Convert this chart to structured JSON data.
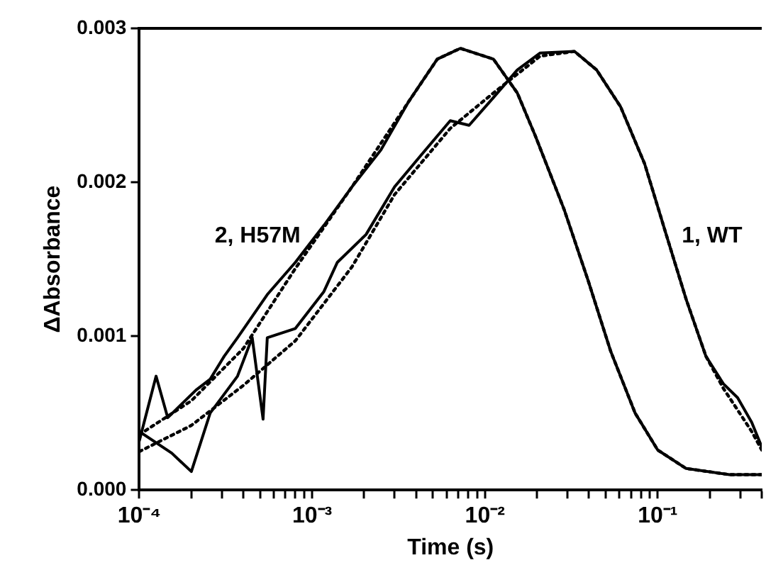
{
  "chart_data": {
    "type": "line",
    "xlabel": "Time (s)",
    "ylabel": "ΔAbsorbance",
    "log": "x",
    "grid": false,
    "legend": false,
    "xlim": [
      0.0001,
      0.4
    ],
    "xticks": [
      {
        "value": 0.0001,
        "label": "10⁻⁴"
      },
      {
        "value": 0.0002,
        "label": null
      },
      {
        "value": 0.0003,
        "label": null
      },
      {
        "value": 0.0004,
        "label": null
      },
      {
        "value": 0.0005,
        "label": null
      },
      {
        "value": 0.0006,
        "label": null
      },
      {
        "value": 0.0007,
        "label": null
      },
      {
        "value": 0.0008,
        "label": null
      },
      {
        "value": 0.0009,
        "label": null
      },
      {
        "value": 0.001,
        "label": "10⁻³"
      },
      {
        "value": 0.002,
        "label": null
      },
      {
        "value": 0.003,
        "label": null
      },
      {
        "value": 0.004,
        "label": null
      },
      {
        "value": 0.005,
        "label": null
      },
      {
        "value": 0.006,
        "label": null
      },
      {
        "value": 0.007,
        "label": null
      },
      {
        "value": 0.008,
        "label": null
      },
      {
        "value": 0.009,
        "label": null
      },
      {
        "value": 0.01,
        "label": "10⁻²"
      },
      {
        "value": 0.02,
        "label": null
      },
      {
        "value": 0.03,
        "label": null
      },
      {
        "value": 0.04,
        "label": null
      },
      {
        "value": 0.05,
        "label": null
      },
      {
        "value": 0.06,
        "label": null
      },
      {
        "value": 0.07,
        "label": null
      },
      {
        "value": 0.08,
        "label": null
      },
      {
        "value": 0.09,
        "label": null
      },
      {
        "value": 0.1,
        "label": "10⁻¹"
      },
      {
        "value": 0.2,
        "label": null
      },
      {
        "value": 0.3,
        "label": null
      },
      {
        "value": 0.4,
        "label": null
      }
    ],
    "ylim": [
      0,
      0.003
    ],
    "yticks": [
      {
        "value": 0,
        "label": "0.000"
      },
      {
        "value": 0.001,
        "label": "0.001"
      },
      {
        "value": 0.002,
        "label": "0.002"
      },
      {
        "value": 0.003,
        "label": "0.003"
      }
    ],
    "annotations": [
      "2, H57M",
      "1, WT"
    ],
    "series": [
      {
        "color": "#000000",
        "line_style": "solid",
        "x": [
          0.0001,
          0.000125,
          0.000146,
          0.000213,
          0.000257,
          0.00031,
          0.00037,
          0.00055,
          0.0008,
          0.00117,
          0.0017,
          0.0025,
          0.0036,
          0.0053,
          0.0072,
          0.0112,
          0.0154,
          0.0196,
          0.0288,
          0.0396,
          0.0535,
          0.074,
          0.1,
          0.146,
          0.26,
          0.4
        ],
        "values": [
          0.00032,
          0.00074,
          0.00047,
          0.00065,
          0.00072,
          0.00087,
          0.00099,
          0.00127,
          0.00148,
          0.00172,
          0.00197,
          0.00221,
          0.00252,
          0.0028,
          0.00287,
          0.0028,
          0.00258,
          0.0023,
          0.00182,
          0.00136,
          0.0009,
          0.0005,
          0.00026,
          0.00014,
          0.0001,
          0.0001
        ]
      },
      {
        "color": "#000000",
        "line_style": "dotted",
        "x": [
          0.0001,
          0.0002,
          0.0004,
          0.0008,
          0.0017,
          0.0036,
          0.0053,
          0.0072,
          0.0112,
          0.0154,
          0.0196,
          0.0288,
          0.0396,
          0.0535,
          0.074,
          0.1,
          0.146,
          0.26,
          0.4
        ],
        "values": [
          0.00036,
          0.00058,
          0.00092,
          0.00144,
          0.00197,
          0.00252,
          0.0028,
          0.00287,
          0.0028,
          0.00258,
          0.0023,
          0.00182,
          0.00136,
          0.0009,
          0.0005,
          0.00026,
          0.00014,
          0.0001,
          0.0001
        ]
      },
      {
        "color": "#000000",
        "line_style": "solid",
        "x": [
          0.0001,
          0.000154,
          0.0002,
          0.000257,
          0.00037,
          0.00045,
          0.00052,
          0.00055,
          0.0008,
          0.00117,
          0.0014,
          0.00205,
          0.003,
          0.0043,
          0.0063,
          0.0081,
          0.0112,
          0.0154,
          0.0209,
          0.033,
          0.0443,
          0.061,
          0.084,
          0.112,
          0.146,
          0.19,
          0.24,
          0.29,
          0.35,
          0.4
        ],
        "values": [
          0.00038,
          0.00024,
          0.00012,
          0.0005,
          0.00074,
          0.00099,
          0.00046,
          0.00099,
          0.00105,
          0.00129,
          0.00148,
          0.00166,
          0.00197,
          0.00218,
          0.0024,
          0.00237,
          0.00255,
          0.00273,
          0.00284,
          0.00285,
          0.00273,
          0.00249,
          0.00212,
          0.00166,
          0.00124,
          0.00087,
          0.00069,
          0.0006,
          0.00044,
          0.00028
        ]
      },
      {
        "color": "#000000",
        "line_style": "dotted",
        "x": [
          0.0001,
          0.0002,
          0.0004,
          0.0008,
          0.0017,
          0.003,
          0.0063,
          0.0112,
          0.0209,
          0.033,
          0.0443,
          0.061,
          0.084,
          0.112,
          0.146,
          0.19,
          0.24,
          0.29,
          0.35,
          0.4
        ],
        "values": [
          0.00025,
          0.00042,
          0.00068,
          0.00097,
          0.00145,
          0.00192,
          0.00235,
          0.00258,
          0.00282,
          0.00285,
          0.00273,
          0.00249,
          0.00212,
          0.00166,
          0.00124,
          0.00087,
          0.00066,
          0.00052,
          0.00038,
          0.00026
        ]
      }
    ]
  }
}
